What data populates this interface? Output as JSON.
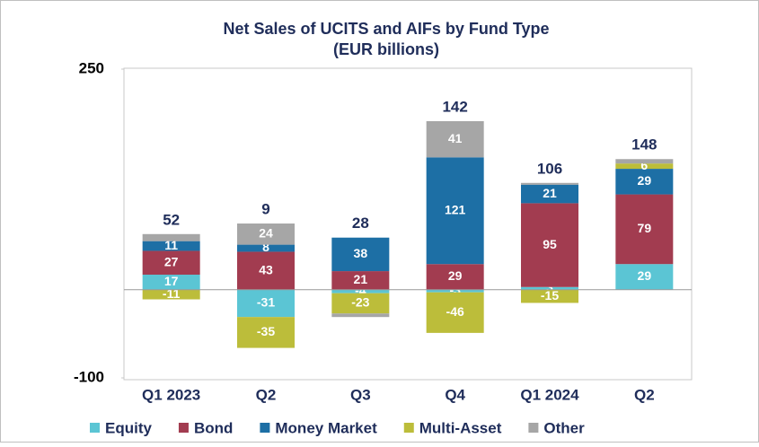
{
  "chart_data": {
    "type": "stacked_bar",
    "title": "Net Sales of UCITS and AIFs by Fund Type",
    "subtitle": "(EUR billions)",
    "categories": [
      "Q1 2023",
      "Q2",
      "Q3",
      "Q4",
      "Q1 2024",
      "Q2"
    ],
    "series": [
      {
        "name": "Equity",
        "color": "#5bc5d4",
        "values": [
          17,
          -31,
          -4,
          -3,
          3,
          29
        ],
        "value_labels": [
          "17",
          "-31",
          "-4",
          "-3",
          "3",
          "29"
        ]
      },
      {
        "name": "Bond",
        "color": "#a23c50",
        "values": [
          27,
          43,
          21,
          29,
          95,
          79
        ],
        "value_labels": [
          "27",
          "43",
          "21",
          "29",
          "95",
          "79"
        ]
      },
      {
        "name": "Money Market",
        "color": "#1d6fa5",
        "values": [
          11,
          8,
          38,
          121,
          21,
          29
        ],
        "value_labels": [
          "11",
          "8",
          "38",
          "121",
          "21",
          "29"
        ]
      },
      {
        "name": "Multi-Asset",
        "color": "#bcbd3a",
        "values": [
          -11,
          -35,
          -23,
          -46,
          -15,
          6
        ],
        "value_labels": [
          "-11",
          "-35",
          "-23",
          "-46",
          "-15",
          "6"
        ]
      },
      {
        "name": "Other",
        "color": "#a6a6a6",
        "values": [
          8,
          24,
          -4,
          41,
          2,
          5
        ],
        "value_labels": [
          null,
          "24",
          null,
          "41",
          null,
          null
        ]
      }
    ],
    "totals": [
      52,
      9,
      28,
      142,
      106,
      148
    ],
    "ylim": [
      -100,
      250
    ],
    "yticks": [
      -100,
      250
    ]
  }
}
